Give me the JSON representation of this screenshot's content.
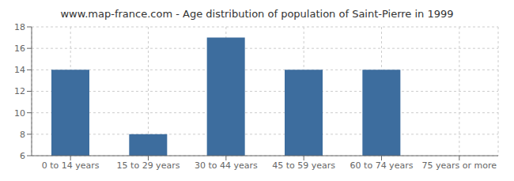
{
  "chart_data": {
    "type": "bar",
    "title": "www.map-france.com - Age distribution of population of Saint-Pierre in 1999",
    "categories": [
      "0 to 14 years",
      "15 to 29 years",
      "30 to 44 years",
      "45 to 59 years",
      "60 to 74 years",
      "75 years or more"
    ],
    "values": [
      14,
      8,
      17,
      14,
      14,
      6
    ],
    "color": "#3d6d9e",
    "ylim": [
      6,
      18
    ],
    "yticks": [
      6,
      8,
      10,
      12,
      14,
      16,
      18
    ],
    "grid": true
  }
}
